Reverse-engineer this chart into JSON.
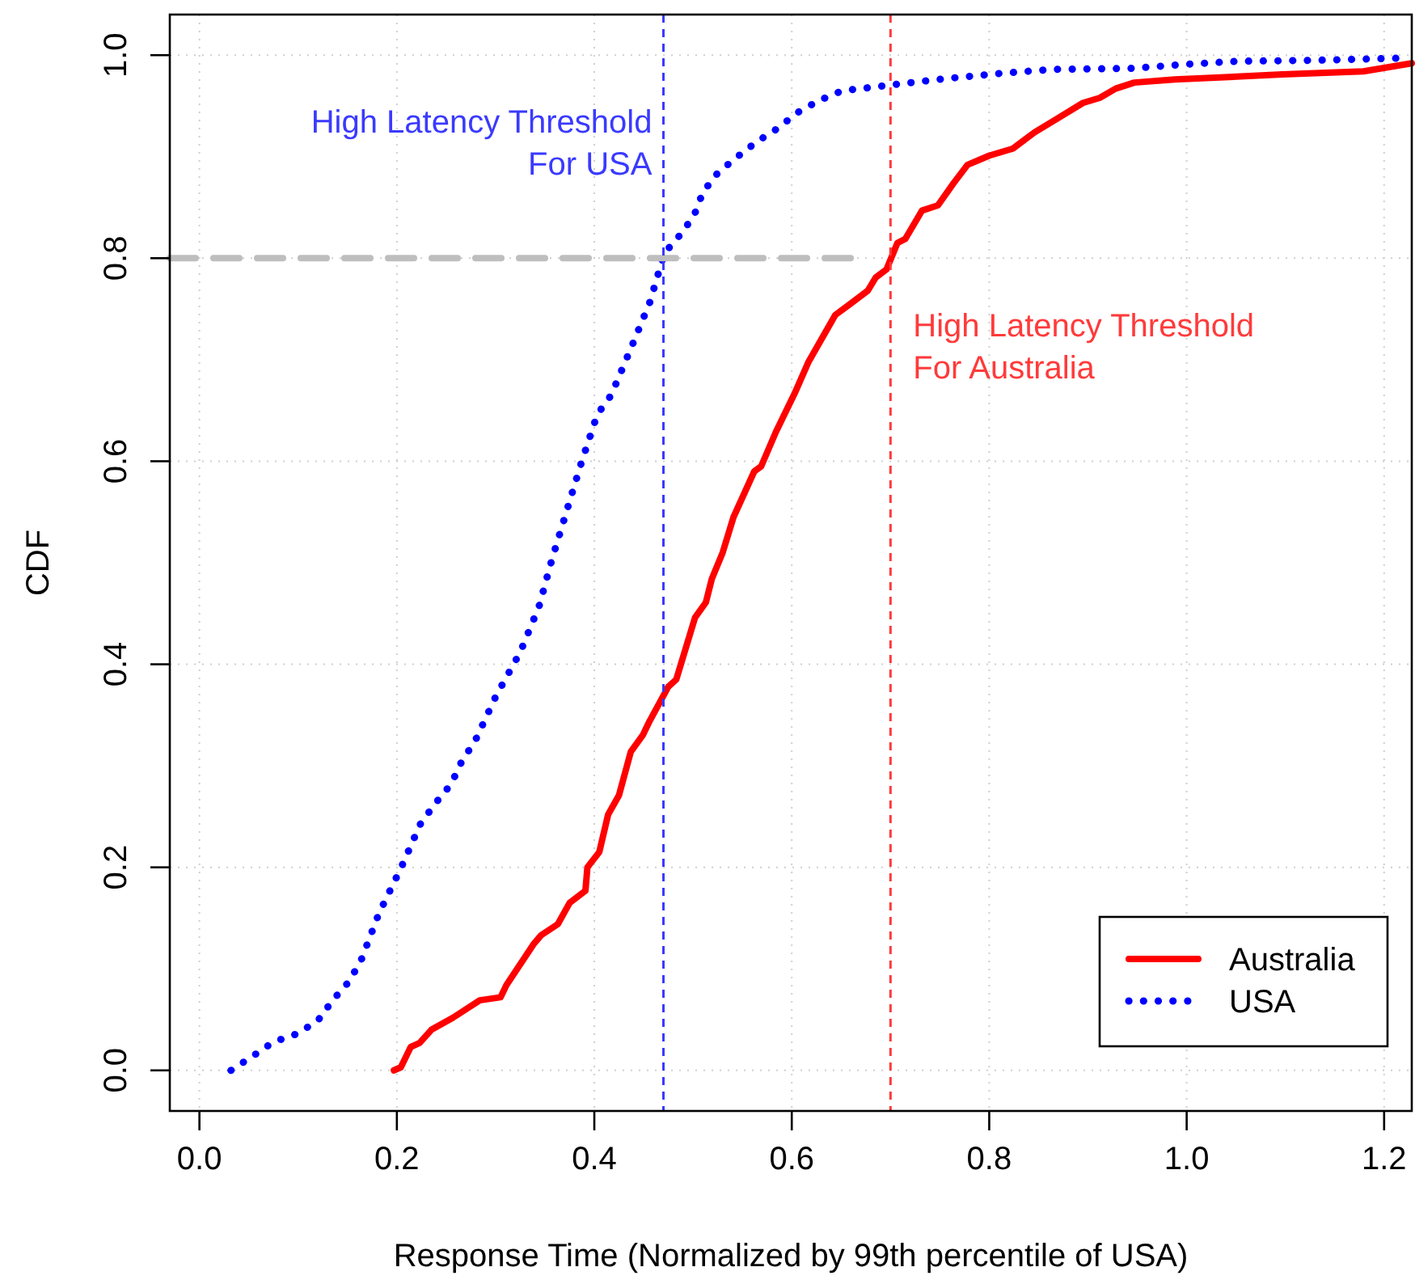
{
  "chart_data": {
    "type": "line",
    "xlabel": "Response Time (Normalized by 99th percentile of USA)",
    "ylabel": "CDF",
    "xlim": [
      -0.03,
      1.228
    ],
    "ylim": [
      -0.04,
      1.04
    ],
    "xticks": [
      {
        "value": 0,
        "label": "0.0"
      },
      0.2,
      0.4,
      0.6,
      0.8,
      {
        "value": 1,
        "label": "1.0"
      },
      1.2
    ],
    "yticks": [
      {
        "value": 0,
        "label": "0.0"
      },
      0.2,
      0.4,
      0.6,
      0.8,
      {
        "value": 1,
        "label": "1.0"
      }
    ],
    "grid": true,
    "legend": "bottom right",
    "series": [
      {
        "name": "Australia",
        "color": "#ff0000",
        "line_style": "solid",
        "x": [
          0.197,
          0.204,
          0.214,
          0.223,
          0.235,
          0.257,
          0.284,
          0.305,
          0.311,
          0.339,
          0.346,
          0.363,
          0.375,
          0.391,
          0.393,
          0.405,
          0.414,
          0.425,
          0.437,
          0.449,
          0.456,
          0.475,
          0.483,
          0.502,
          0.513,
          0.519,
          0.53,
          0.541,
          0.562,
          0.569,
          0.584,
          0.603,
          0.617,
          0.644,
          0.658,
          0.677,
          0.685,
          0.696,
          0.707,
          0.715,
          0.732,
          0.748,
          0.764,
          0.778,
          0.8,
          0.824,
          0.846,
          0.868,
          0.895,
          0.912,
          0.928,
          0.947,
          0.988,
          1.097,
          1.179,
          1.228
        ],
        "values": [
          0.0,
          0.003,
          0.023,
          0.027,
          0.04,
          0.052,
          0.069,
          0.072,
          0.084,
          0.125,
          0.133,
          0.144,
          0.165,
          0.177,
          0.2,
          0.215,
          0.252,
          0.271,
          0.314,
          0.33,
          0.344,
          0.378,
          0.385,
          0.446,
          0.461,
          0.484,
          0.51,
          0.545,
          0.59,
          0.595,
          0.629,
          0.667,
          0.698,
          0.744,
          0.754,
          0.768,
          0.781,
          0.789,
          0.815,
          0.819,
          0.847,
          0.852,
          0.874,
          0.892,
          0.901,
          0.908,
          0.924,
          0.937,
          0.953,
          0.958,
          0.967,
          0.973,
          0.976,
          0.981,
          0.984,
          0.992
        ]
      },
      {
        "name": "USA",
        "color": "#0000ff",
        "line_style": "dotted",
        "x": [
          0.032,
          0.054,
          0.075,
          0.099,
          0.12,
          0.135,
          0.152,
          0.164,
          0.182,
          0.204,
          0.224,
          0.239,
          0.255,
          0.266,
          0.279,
          0.3,
          0.325,
          0.344,
          0.357,
          0.372,
          0.387,
          0.403,
          0.417,
          0.437,
          0.456,
          0.471,
          0.487,
          0.501,
          0.51,
          0.525,
          0.545,
          0.565,
          0.586,
          0.605,
          0.627,
          0.651,
          0.678,
          0.703,
          0.757,
          0.811,
          0.864,
          0.945,
          0.999,
          1.052,
          1.133,
          1.215
        ],
        "values": [
          0.0,
          0.014,
          0.028,
          0.036,
          0.049,
          0.069,
          0.088,
          0.109,
          0.155,
          0.199,
          0.243,
          0.263,
          0.282,
          0.305,
          0.324,
          0.368,
          0.412,
          0.457,
          0.503,
          0.551,
          0.599,
          0.646,
          0.665,
          0.711,
          0.756,
          0.805,
          0.823,
          0.842,
          0.865,
          0.884,
          0.9,
          0.915,
          0.928,
          0.943,
          0.955,
          0.965,
          0.968,
          0.971,
          0.977,
          0.982,
          0.986,
          0.987,
          0.991,
          0.994,
          0.995,
          0.997
        ]
      },
      {
        "color": "#bebebe",
        "line_style": "dashed",
        "x": [
          -0.03,
          0.67
        ],
        "values": [
          0.8,
          0.8
        ]
      }
    ],
    "ref_lines": [
      {
        "axis": "x",
        "value": 0.47,
        "label": "High Latency Threshold\nFor USA",
        "color": "#3a3aff",
        "line_style": "dashed"
      },
      {
        "axis": "x",
        "value": 0.7,
        "label": "High Latency Threshold\nFor Australia",
        "color": "#ff3a3a",
        "line_style": "dashed"
      }
    ]
  }
}
